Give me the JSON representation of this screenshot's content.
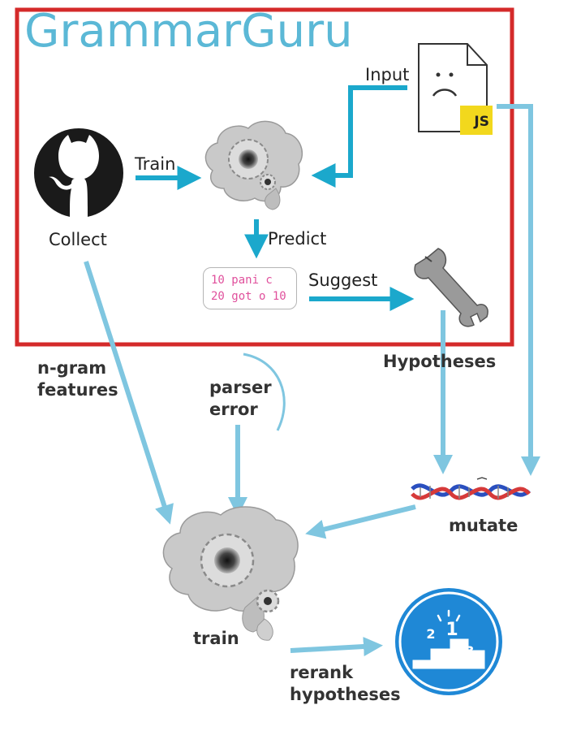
{
  "title": "GrammarGuru",
  "labels": {
    "train_top": "Train",
    "collect": "Collect",
    "predict": "Predict",
    "suggest": "Suggest",
    "input": "Input",
    "hypotheses": "Hypotheses",
    "ngram_1": "n-gram",
    "ngram_2": "features",
    "parser_1": "parser",
    "parser_2": "error",
    "mutate": "mutate",
    "train_bottom": "train",
    "rerank_1": "rerank",
    "rerank_2": "hypotheses"
  },
  "code_lines": [
    "10 pani c",
    "20 got o 10"
  ],
  "js_badge": "JS",
  "podium": {
    "first": "1",
    "second": "2",
    "third": "3"
  },
  "colors": {
    "frame": "#d42a2a",
    "title": "#5bb8d6",
    "arrow_dark": "#1ba8cc",
    "arrow_light": "#7fc6e0",
    "code_text": "#e0509c",
    "js_yellow": "#f2d81d",
    "podium_blue": "#1f88d6"
  },
  "icons": [
    "github-icon",
    "brain-icon",
    "file-sad-icon",
    "wrench-icon",
    "dna-icon",
    "podium-icon"
  ]
}
